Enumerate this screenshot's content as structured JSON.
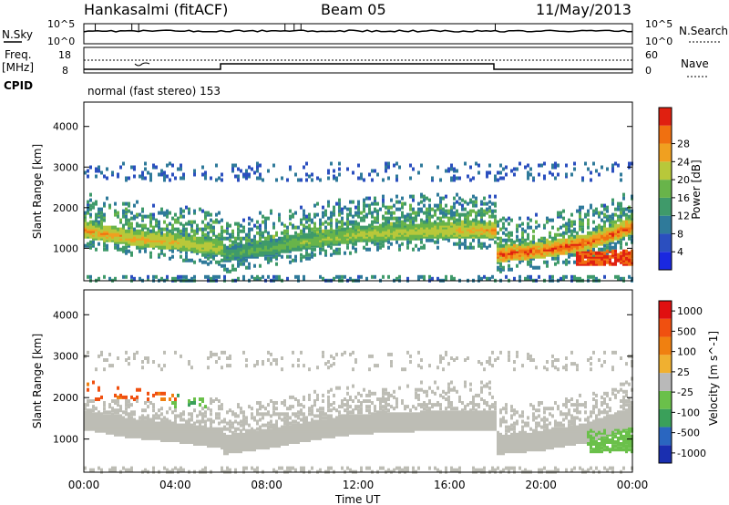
{
  "header": {
    "station": "Hankasalmi (fitACF)",
    "beam": "Beam 05",
    "date": "11/May/2013"
  },
  "noise_panel": {
    "left_label": "N.Sky",
    "left_ticks": [
      "10^5",
      "10^0"
    ],
    "right_ticks": [
      "10^5",
      "10^0"
    ],
    "right_label": "N.Search"
  },
  "freq_panel": {
    "left_label_line1": "Freq.",
    "left_label_line2": "[MHz]",
    "left_ticks": [
      "18",
      "8"
    ],
    "right_ticks": [
      "60",
      "0"
    ],
    "right_label": "Nave",
    "cpid_label": "CPID",
    "cpid_text": "normal (fast stereo) 153"
  },
  "colors": {
    "power_scale": [
      "#1a28e0",
      "#2b4fbf",
      "#2f7a9a",
      "#3f9a6a",
      "#68b44a",
      "#b8c83a",
      "#f0a020",
      "#f07010",
      "#e02010"
    ],
    "velocity_scale": [
      "#1a2fb0",
      "#2a66c0",
      "#3aa05a",
      "#6ac04a",
      "#b9b9b9",
      "#f0b030",
      "#f08010",
      "#f05010",
      "#e01010"
    ],
    "ground_scatter": "#bdbdb5"
  },
  "chart_data": [
    {
      "type": "heatmap",
      "title": "",
      "xlabel": "Time UT",
      "ylabel": "Slant Range [km]",
      "x_ticks": [
        "00:00",
        "04:00",
        "08:00",
        "12:00",
        "16:00",
        "20:00",
        "00:00"
      ],
      "y_ticks": [
        1000,
        2000,
        3000,
        4000
      ],
      "ylim": [
        200,
        4600
      ],
      "colorbar_label": "Power [dB]",
      "colorbar_ticks": [
        4,
        8,
        12,
        16,
        20,
        24,
        28
      ],
      "bands": [
        {
          "name": "",
          "hours": [
            0,
            2,
            4,
            6,
            6.01,
            8,
            10,
            12,
            14,
            16,
            18,
            18.01,
            20,
            22,
            24
          ],
          "range": [
            1500,
            1300,
            1200,
            1050,
            900,
            1050,
            1250,
            1400,
            1450,
            1500,
            1500,
            900,
            1000,
            1200,
            1600
          ],
          "power": [
            26,
            25,
            24,
            22,
            16,
            18,
            20,
            22,
            22,
            24,
            26,
            28,
            28,
            28,
            28
          ]
        }
      ]
    },
    {
      "type": "heatmap",
      "title": "",
      "xlabel": "Time UT",
      "ylabel": "Slant Range [km]",
      "x_ticks": [
        "00:00",
        "04:00",
        "08:00",
        "12:00",
        "16:00",
        "20:00",
        "00:00"
      ],
      "y_ticks": [
        1000,
        2000,
        3000,
        4000
      ],
      "ylim": [
        200,
        4600
      ],
      "colorbar_label": "Velocity [m s^-1]",
      "colorbar_ticks": [
        1000,
        500,
        100,
        25,
        -25,
        -100,
        -500,
        -1000
      ]
    }
  ]
}
